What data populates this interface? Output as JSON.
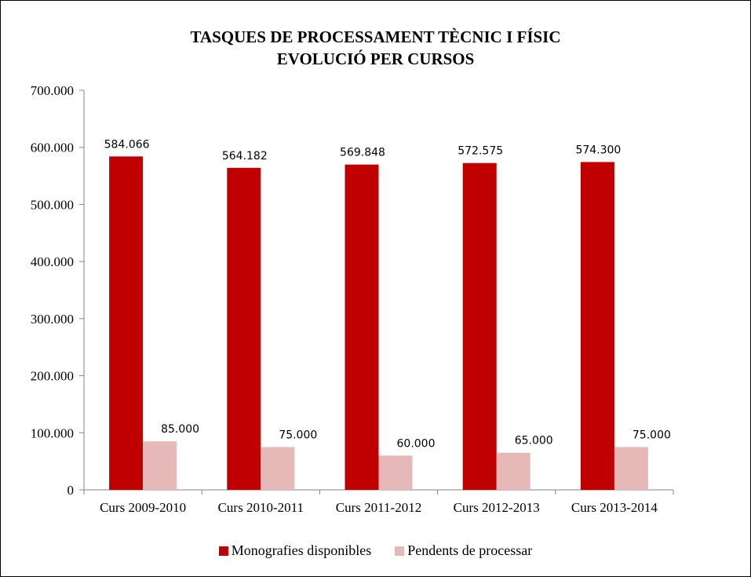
{
  "colors": {
    "series1": "#c00000",
    "series2": "#e6b9b8",
    "axis": "#868686"
  },
  "chart_data": {
    "type": "bar",
    "title": "TASQUES DE PROCESSAMENT TÈCNIC I FÍSIC",
    "subtitle": "EVOLUCIÓ PER CURSOS",
    "categories": [
      "Curs 2009-2010",
      "Curs 2010-2011",
      "Curs 2011-2012",
      "Curs 2012-2013",
      "Curs 2013-2014"
    ],
    "series": [
      {
        "name": "Monografies disponibles",
        "values": [
          584066,
          564182,
          569848,
          572575,
          574300
        ],
        "labels": [
          "584.066",
          "564.182",
          "569.848",
          "572.575",
          "574.300"
        ]
      },
      {
        "name": "Pendents de processar",
        "values": [
          85000,
          75000,
          60000,
          65000,
          75000
        ],
        "labels": [
          "85.000",
          "75.000",
          "60.000",
          "65.000",
          "75.000"
        ]
      }
    ],
    "ylim": [
      0,
      700000
    ],
    "yticks": [
      0,
      100000,
      200000,
      300000,
      400000,
      500000,
      600000,
      700000
    ],
    "ytick_labels": [
      "0",
      "100.000",
      "200.000",
      "300.000",
      "400.000",
      "500.000",
      "600.000",
      "700.000"
    ],
    "grid": false,
    "legend_position": "bottom"
  }
}
